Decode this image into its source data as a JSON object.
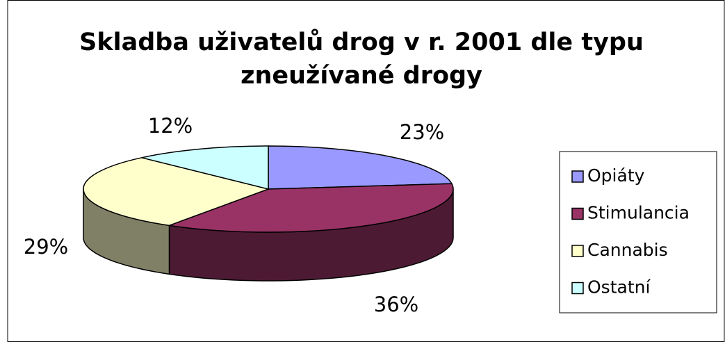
{
  "chart_data": {
    "type": "pie3d",
    "title": "Skladba uživatelů drog v r. 2001 dle typu zneužívané drogy",
    "categories": [
      "Opiáty",
      "Stimulancia",
      "Cannabis",
      "Ostatní"
    ],
    "values": [
      23,
      36,
      29,
      12
    ],
    "value_labels": [
      "23%",
      "36%",
      "29%",
      "12%"
    ],
    "colors": [
      "#9999ff",
      "#993366",
      "#ffffcc",
      "#ccffff"
    ],
    "legend": "right"
  }
}
